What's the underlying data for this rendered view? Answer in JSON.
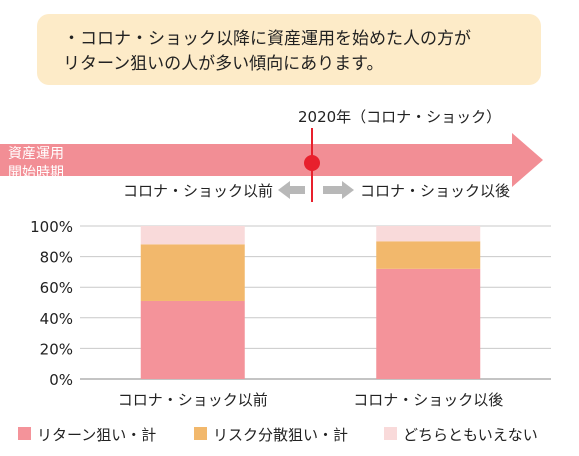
{
  "callout": {
    "lines": [
      "・コロナ・ショック以降に資産運用を始めた人の方が",
      "リターン狙いの人が多い傾向にあります。"
    ]
  },
  "timeline": {
    "arrow_label_line1": "資産運用",
    "arrow_label_line2": "開始時期",
    "event_label": "2020年（コロナ・ショック）",
    "before_label": "コロナ・ショック以前",
    "after_label": "コロナ・ショック以後",
    "arrow_color": "#f28e95",
    "marker_color": "#e8202d",
    "small_arrow_color": "#b8b8b8"
  },
  "chart_data": {
    "type": "bar",
    "stacked": true,
    "categories": [
      "コロナ・ショック以前",
      "コロナ・ショック以後"
    ],
    "series": [
      {
        "name": "リターン狙い・計",
        "color": "#f4939a",
        "values": [
          51,
          72
        ]
      },
      {
        "name": "リスク分散狙い・計",
        "color": "#f2b86c",
        "values": [
          37,
          18
        ]
      },
      {
        "name": "どちらともいえない",
        "color": "#f9dada",
        "values": [
          12,
          10
        ]
      }
    ],
    "ylim": [
      0,
      100
    ],
    "yticks": [
      0,
      20,
      40,
      60,
      80,
      100
    ],
    "ytick_labels": [
      "0%",
      "20%",
      "40%",
      "60%",
      "80%",
      "100%"
    ],
    "grid": true,
    "legend": "bottom"
  }
}
